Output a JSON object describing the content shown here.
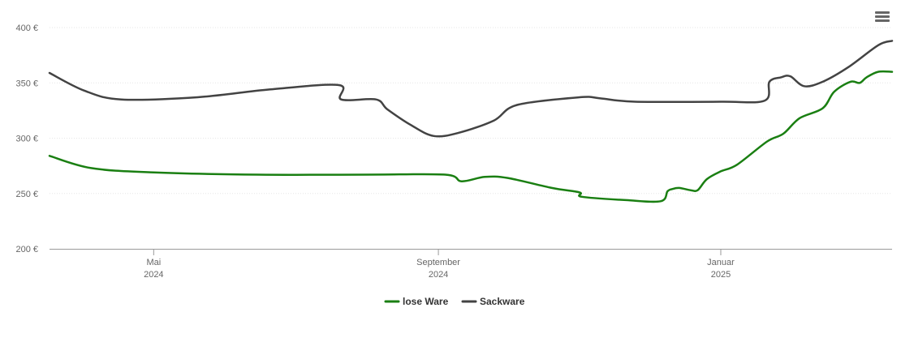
{
  "menu": {
    "icon": "hamburger-menu-icon"
  },
  "chart_data": {
    "type": "line",
    "title": "",
    "xlabel": "",
    "ylabel": "",
    "ylim": [
      200,
      400
    ],
    "y_ticks": [
      {
        "value": 200,
        "label": "200 €"
      },
      {
        "value": 250,
        "label": "250 €"
      },
      {
        "value": 300,
        "label": "300 €"
      },
      {
        "value": 350,
        "label": "350 €"
      },
      {
        "value": 400,
        "label": "400 €"
      }
    ],
    "xlim": [
      "2024-03-17",
      "2025-03-16"
    ],
    "x_ticks": [
      {
        "date": "2024-05-01",
        "line1": "Mai",
        "line2": "2024"
      },
      {
        "date": "2024-09-01",
        "line1": "September",
        "line2": "2024"
      },
      {
        "date": "2025-01-01",
        "line1": "Januar",
        "line2": "2025"
      }
    ],
    "grid": true,
    "legend": "bottom-center",
    "series": [
      {
        "name": "lose Ware",
        "color": "#1a7f12",
        "points": [
          [
            "2024-03-17",
            284
          ],
          [
            "2024-04-04",
            273
          ],
          [
            "2024-05-01",
            269
          ],
          [
            "2024-06-15",
            267
          ],
          [
            "2024-08-01",
            267
          ],
          [
            "2024-09-04",
            267
          ],
          [
            "2024-09-11",
            261
          ],
          [
            "2024-09-21",
            265
          ],
          [
            "2024-10-01",
            264
          ],
          [
            "2024-10-20",
            255
          ],
          [
            "2024-11-01",
            251
          ],
          [
            "2024-11-02",
            247
          ],
          [
            "2024-11-21",
            244
          ],
          [
            "2024-12-06",
            243
          ],
          [
            "2024-12-09",
            252
          ],
          [
            "2024-12-11",
            254
          ],
          [
            "2024-12-14",
            255
          ],
          [
            "2024-12-19",
            253
          ],
          [
            "2024-12-22",
            253
          ],
          [
            "2024-12-26",
            263
          ],
          [
            "2025-01-01",
            270
          ],
          [
            "2025-01-08",
            276
          ],
          [
            "2025-01-21",
            297
          ],
          [
            "2025-01-28",
            304
          ],
          [
            "2025-02-04",
            318
          ],
          [
            "2025-02-14",
            327
          ],
          [
            "2025-02-19",
            342
          ],
          [
            "2025-02-26",
            351
          ],
          [
            "2025-03-02",
            350
          ],
          [
            "2025-03-05",
            355
          ],
          [
            "2025-03-10",
            360
          ],
          [
            "2025-03-16",
            360
          ]
        ]
      },
      {
        "name": "Sackware",
        "color": "#434343",
        "points": [
          [
            "2024-03-17",
            359
          ],
          [
            "2024-04-01",
            343
          ],
          [
            "2024-04-17",
            335
          ],
          [
            "2024-05-20",
            337
          ],
          [
            "2024-06-20",
            344
          ],
          [
            "2024-07-20",
            348
          ],
          [
            "2024-07-21",
            335
          ],
          [
            "2024-08-05",
            335
          ],
          [
            "2024-08-10",
            326
          ],
          [
            "2024-08-20",
            312
          ],
          [
            "2024-08-30",
            302
          ],
          [
            "2024-09-10",
            305
          ],
          [
            "2024-09-25",
            316
          ],
          [
            "2024-10-05",
            330
          ],
          [
            "2024-11-01",
            337
          ],
          [
            "2024-11-10",
            336
          ],
          [
            "2024-11-25",
            333
          ],
          [
            "2025-01-01",
            333
          ],
          [
            "2025-01-20",
            334
          ],
          [
            "2025-01-22",
            351
          ],
          [
            "2025-01-27",
            355
          ],
          [
            "2025-01-31",
            356
          ],
          [
            "2025-02-06",
            347
          ],
          [
            "2025-02-14",
            351
          ],
          [
            "2025-02-25",
            364
          ],
          [
            "2025-03-10",
            384
          ],
          [
            "2025-03-16",
            388
          ]
        ]
      }
    ]
  }
}
